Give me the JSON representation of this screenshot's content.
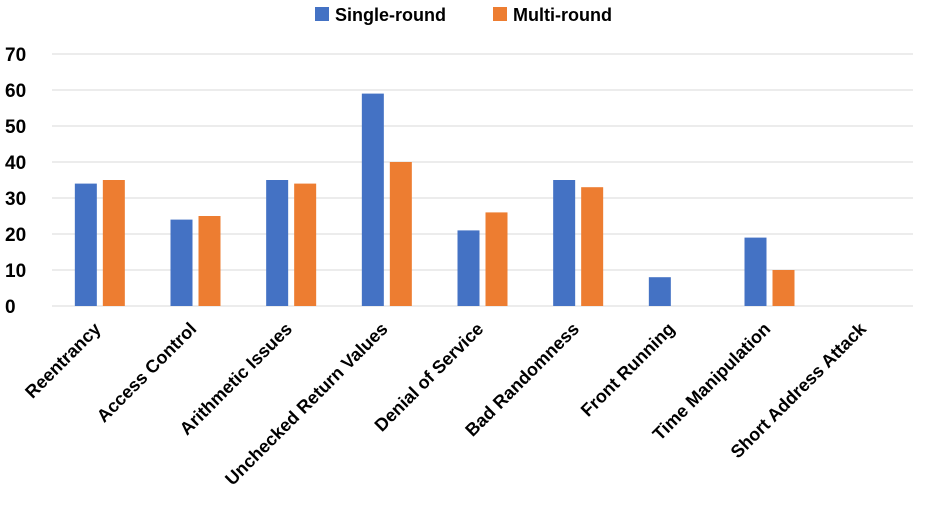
{
  "chart_data": {
    "type": "bar",
    "categories": [
      "Reentrancy",
      "Access Control",
      "Arithmetic Issues",
      "Unchecked Return Values",
      "Denial of Service",
      "Bad Randomness",
      "Front Running",
      "Time Manipulation",
      "Short Address Attack"
    ],
    "series": [
      {
        "name": "Single-round",
        "color": "#4472C4",
        "values": [
          34,
          24,
          35,
          59,
          21,
          35,
          8,
          19,
          0
        ]
      },
      {
        "name": "Multi-round",
        "color": "#ED7D31",
        "values": [
          35,
          25,
          34,
          40,
          26,
          33,
          0,
          10,
          0
        ]
      }
    ],
    "title": "",
    "xlabel": "",
    "ylabel": "",
    "ylim": [
      0,
      70
    ],
    "yticks": [
      0,
      10,
      20,
      30,
      40,
      50,
      60,
      70
    ],
    "grid": true,
    "legend_position": "top-center"
  }
}
